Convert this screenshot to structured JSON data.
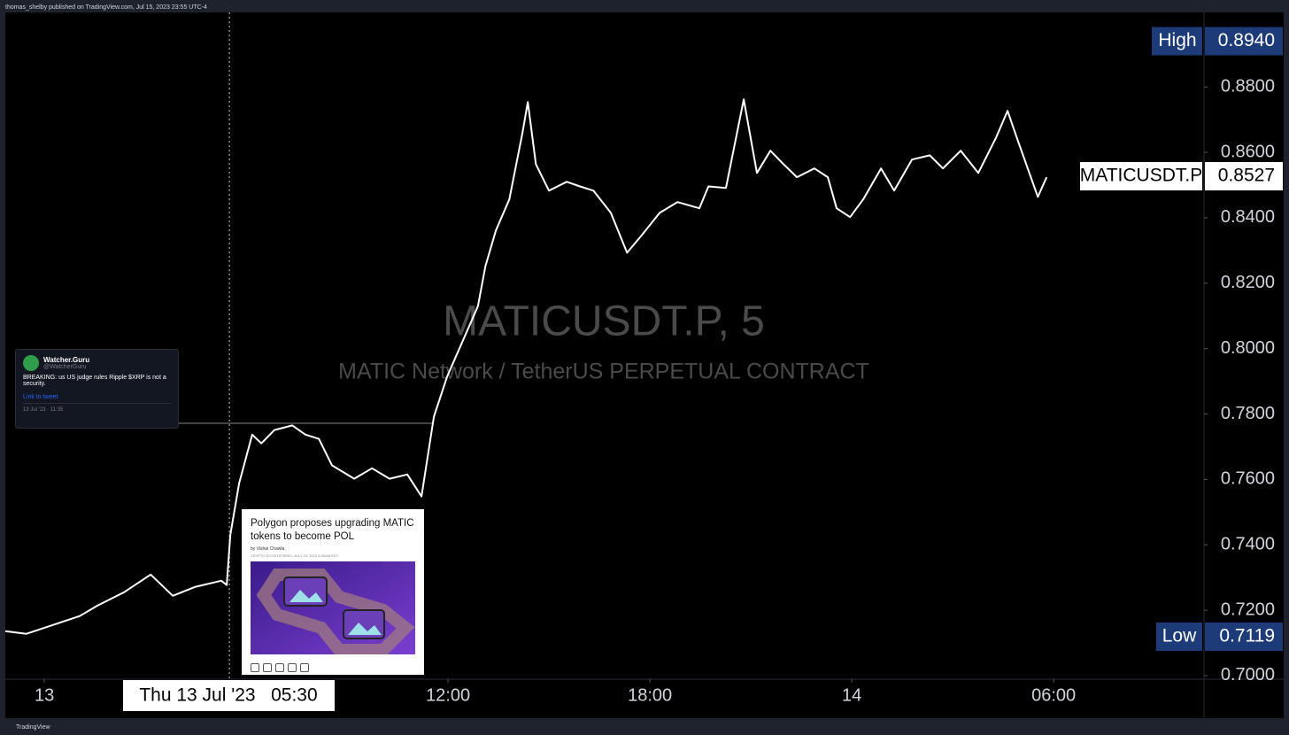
{
  "header": {
    "publisher": "thomas_shelby published on TradingView.com, Jul 15, 2023 23:55 UTC-4"
  },
  "footer": {
    "brand": "TradingView"
  },
  "chart_data": {
    "type": "line",
    "watermark_title": "MATICUSDT.P, 5",
    "watermark_subtitle": "MATIC Network / TetherUS PERPETUAL CONTRACT",
    "x": [
      -1.16,
      -0.53,
      0.26,
      1.05,
      1.58,
      2.37,
      3.16,
      3.82,
      4.47,
      5.26,
      5.42,
      5.53,
      5.79,
      6.18,
      6.45,
      6.84,
      7.37,
      7.76,
      8.16,
      8.55,
      9.21,
      9.74,
      10.26,
      10.79,
      11.21,
      11.58,
      11.97,
      12.37,
      12.89,
      13.11,
      13.42,
      13.82,
      14.21,
      14.37,
      14.61,
      15.0,
      15.53,
      15.92,
      16.32,
      16.84,
      17.32,
      17.76,
      18.29,
      18.82,
      19.47,
      19.74,
      20.26,
      20.79,
      21.18,
      21.58,
      21.97,
      22.37,
      22.89,
      23.29,
      23.55,
      23.95,
      24.34,
      24.87,
      25.26,
      25.79,
      26.32,
      26.71,
      27.24,
      27.76,
      28.29,
      28.63,
      28.95,
      29.53,
      29.79
    ],
    "series": [
      {
        "name": "MATICUSDT.P",
        "color": "#ffffff",
        "values": [
          0.7136,
          0.7128,
          0.7155,
          0.7182,
          0.7214,
          0.7255,
          0.7309,
          0.7244,
          0.7271,
          0.729,
          0.7277,
          0.7431,
          0.7588,
          0.7737,
          0.771,
          0.7751,
          0.7765,
          0.7737,
          0.7724,
          0.7643,
          0.7602,
          0.7634,
          0.7602,
          0.7615,
          0.7548,
          0.7792,
          0.7914,
          0.8008,
          0.813,
          0.8252,
          0.8361,
          0.8456,
          0.8659,
          0.8754,
          0.8564,
          0.8483,
          0.851,
          0.8496,
          0.8483,
          0.8415,
          0.8293,
          0.8347,
          0.8415,
          0.8448,
          0.8429,
          0.8496,
          0.8491,
          0.8762,
          0.8537,
          0.8605,
          0.8564,
          0.8524,
          0.8551,
          0.8524,
          0.8429,
          0.8402,
          0.8456,
          0.8551,
          0.8483,
          0.8578,
          0.8591,
          0.8551,
          0.8605,
          0.8537,
          0.8645,
          0.8727,
          0.8632,
          0.8464,
          0.8524
        ]
      }
    ],
    "xlim": [
      -1.16,
      34.47
    ],
    "xticks": [
      {
        "value": 0,
        "label": "13"
      },
      {
        "value": 12,
        "label": "12:00"
      },
      {
        "value": 18,
        "label": "18:00"
      },
      {
        "value": 24,
        "label": "14"
      },
      {
        "value": 30,
        "label": "06:00"
      }
    ],
    "ylim": [
      0.6989,
      0.9028
    ],
    "yticks": [
      {
        "value": 0.7,
        "label": "0.7000"
      },
      {
        "value": 0.72,
        "label": "0.7200"
      },
      {
        "value": 0.74,
        "label": "0.7400"
      },
      {
        "value": 0.76,
        "label": "0.7600"
      },
      {
        "value": 0.78,
        "label": "0.7800"
      },
      {
        "value": 0.8,
        "label": "0.8000"
      },
      {
        "value": 0.82,
        "label": "0.8200"
      },
      {
        "value": 0.84,
        "label": "0.8400"
      },
      {
        "value": 0.86,
        "label": "0.8600"
      },
      {
        "value": 0.88,
        "label": "0.8800"
      }
    ],
    "high_label": "High",
    "high": {
      "value": 0.894,
      "label": "0.8940"
    },
    "low_label": "Low",
    "low": 0.7119,
    "last_price": 0.8527,
    "crosshair": {
      "value": 5.5,
      "label": "Thu 13 Jul '23   05:30"
    }
  },
  "tweet": {
    "name": "Watcher.Guru",
    "handle": "@WatcherGuru",
    "text": "BREAKING: us US judge rules Ripple $XRP is not a security.",
    "link": "Link to tweet",
    "time": "13 Jul '23 · 11:35"
  },
  "article": {
    "title": "Polygon proposes upgrading MATIC tokens to become POL",
    "byline": "by Vishal Chawla",
    "meta": "CRYPTO ECOSYSTEMS • JULY 13, 2023 5:30AM EDT"
  }
}
